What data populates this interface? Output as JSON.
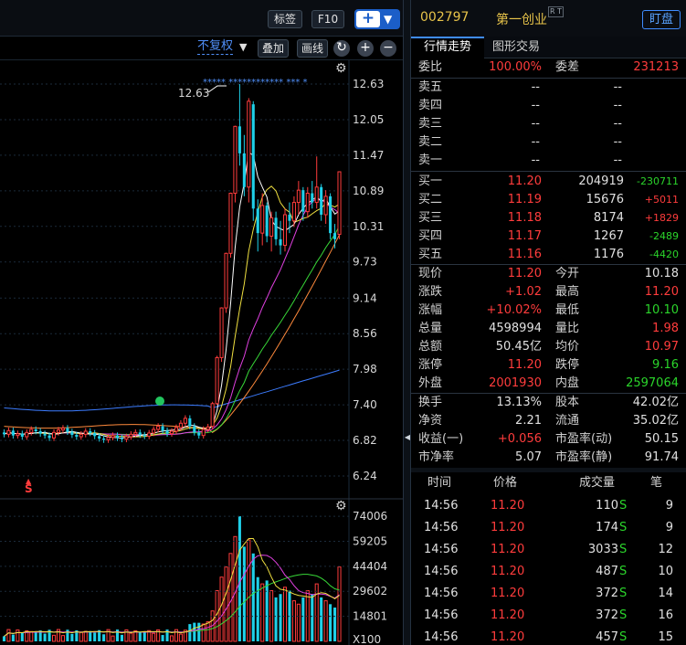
{
  "toolbar": {
    "bookmark_label": "标签",
    "f10_label": "F10",
    "add_label": "+",
    "adjust_mode": "不复权",
    "overlay_label": "叠加",
    "draw_label": "画线"
  },
  "chart": {
    "price_axis_ticks": [
      "12.63",
      "12.05",
      "11.47",
      "10.89",
      "10.31",
      "9.73",
      "9.14",
      "8.56",
      "7.98",
      "7.40",
      "6.82",
      "6.24"
    ],
    "high_label": "12.63",
    "star_marks": "***** ************ *** *",
    "signal_marker": "S",
    "volume_axis_ticks": [
      "74006",
      "59205",
      "44404",
      "29602",
      "14801"
    ],
    "volume_unit": "X100",
    "colors": {
      "up": "#ff3c3c",
      "down": "#1fd0e8",
      "ma5": "#ffffff",
      "ma10": "#f0e040",
      "ma20": "#e040e0",
      "ma30": "#38d838",
      "ma60": "#ff8a3c",
      "ma120": "#3c7cff"
    }
  },
  "header": {
    "code": "002797",
    "name": "第一创业",
    "rt_badge": "R T",
    "watch_label": "盯盘"
  },
  "tabs": {
    "quote": "行情走势",
    "trade": "图形交易"
  },
  "order_ratio": {
    "label": "委比",
    "value": "100.00%",
    "diff_label": "委差",
    "diff_value": "231213"
  },
  "asks": [
    {
      "label": "卖五",
      "price": "--",
      "vol": "--"
    },
    {
      "label": "卖四",
      "price": "--",
      "vol": "--"
    },
    {
      "label": "卖三",
      "price": "--",
      "vol": "--"
    },
    {
      "label": "卖二",
      "price": "--",
      "vol": "--"
    },
    {
      "label": "卖一",
      "price": "--",
      "vol": "--"
    }
  ],
  "bids": [
    {
      "label": "买一",
      "price": "11.20",
      "vol": "204919",
      "chg": "-230711"
    },
    {
      "label": "买二",
      "price": "11.19",
      "vol": "15676",
      "chg": "+5011"
    },
    {
      "label": "买三",
      "price": "11.18",
      "vol": "8174",
      "chg": "+1829"
    },
    {
      "label": "买四",
      "price": "11.17",
      "vol": "1267",
      "chg": "-2489"
    },
    {
      "label": "买五",
      "price": "11.16",
      "vol": "1176",
      "chg": "-4420"
    }
  ],
  "stats1": [
    {
      "l1": "现价",
      "v1": "11.20",
      "l2": "今开",
      "v2": "10.18"
    },
    {
      "l1": "涨跌",
      "v1": "+1.02",
      "l2": "最高",
      "v2": "11.20"
    },
    {
      "l1": "涨幅",
      "v1": "+10.02%",
      "l2": "最低",
      "v2": "10.10"
    },
    {
      "l1": "总量",
      "v1": "4598994",
      "l2": "量比",
      "v2": "1.98"
    },
    {
      "l1": "总额",
      "v1": "50.45亿",
      "l2": "均价",
      "v2": "10.97"
    },
    {
      "l1": "涨停",
      "v1": "11.20",
      "l2": "跌停",
      "v2": "9.16"
    },
    {
      "l1": "外盘",
      "v1": "2001930",
      "l2": "内盘",
      "v2": "2597064"
    }
  ],
  "stats2": [
    {
      "l1": "换手",
      "v1": "13.13%",
      "l2": "股本",
      "v2": "42.02亿"
    },
    {
      "l1": "净资",
      "v1": "2.21",
      "l2": "流通",
      "v2": "35.02亿"
    },
    {
      "l1": "收益(一)",
      "v1": "+0.056",
      "l2": "市盈率(动)",
      "v2": "50.15"
    },
    {
      "l1": "市净率",
      "v1": "5.07",
      "l2": "市盈率(静)",
      "v2": "91.74"
    }
  ],
  "trades_header": {
    "time": "时间",
    "price": "价格",
    "volume": "成交量",
    "count": "笔"
  },
  "trades": [
    {
      "time": "14:56",
      "price": "11.20",
      "vol": "110",
      "side": "S",
      "count": "9"
    },
    {
      "time": "14:56",
      "price": "11.20",
      "vol": "174",
      "side": "S",
      "count": "9"
    },
    {
      "time": "14:56",
      "price": "11.20",
      "vol": "3033",
      "side": "S",
      "count": "12"
    },
    {
      "time": "14:56",
      "price": "11.20",
      "vol": "487",
      "side": "S",
      "count": "10"
    },
    {
      "time": "14:56",
      "price": "11.20",
      "vol": "372",
      "side": "S",
      "count": "14"
    },
    {
      "time": "14:56",
      "price": "11.20",
      "vol": "372",
      "side": "S",
      "count": "16"
    },
    {
      "time": "14:56",
      "price": "11.20",
      "vol": "457",
      "side": "S",
      "count": "15"
    }
  ]
}
